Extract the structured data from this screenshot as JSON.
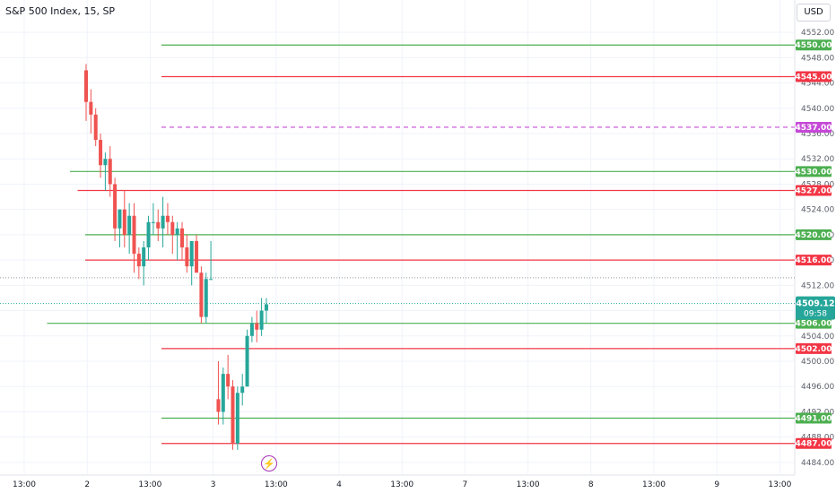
{
  "header": {
    "title": "S&P 500 Index, 15, SP",
    "currency": "USD"
  },
  "colors": {
    "up": "#26a69a",
    "down": "#ef5350",
    "support": "#4caf50",
    "resistance": "#f23645",
    "pivot": "#c548d6",
    "grid": "#f0f3fa",
    "axis_text": "#5d606b",
    "price_label": "#26a69a"
  },
  "chart_data": {
    "type": "candlestick",
    "title": "S&P 500 Index, 15, SP",
    "ylim": [
      4482,
      4554
    ],
    "y_ticks": [
      4552,
      4548,
      4544,
      4540,
      4536,
      4532,
      4528,
      4524,
      4520,
      4516,
      4512,
      4508,
      4504,
      4500,
      4496,
      4492,
      4488,
      4484
    ],
    "y_tick_labels": [
      "4552.00",
      "4548.00",
      "4544.00",
      "4540.00",
      "4536.00",
      "4532.00",
      "4528.00",
      "4524.00",
      "4520.00",
      "4516.00",
      "4512.00",
      "4508.00",
      "4504.00",
      "4500.00",
      "4496.00",
      "4492.00",
      "4488.00",
      "4484.00"
    ],
    "x_tick_labels": [
      "13:00",
      "2",
      "13:00",
      "3",
      "13:00",
      "4",
      "13:00",
      "7",
      "13:00",
      "8",
      "13:00",
      "9",
      "13:00"
    ],
    "grid": true,
    "current_price": "4509.12",
    "countdown": "09:58",
    "last_close_level": 4513.2,
    "levels": [
      {
        "value": 4550,
        "label": "4550.00",
        "kind": "support",
        "style": "solid",
        "start_index": 0.6
      },
      {
        "value": 4545,
        "label": "4545.00",
        "kind": "resistance",
        "style": "solid",
        "start_index": 0.6
      },
      {
        "value": 4537,
        "label": "4537.00",
        "kind": "pivot",
        "style": "dashed",
        "start_index": 0.6
      },
      {
        "value": 4530,
        "label": "4530.00",
        "kind": "support",
        "style": "solid",
        "start_index": 0.0
      },
      {
        "value": 4527,
        "label": "4527.00",
        "kind": "resistance",
        "style": "solid",
        "start_index": 0.05
      },
      {
        "value": 4520,
        "label": "4520.00",
        "kind": "support",
        "style": "solid",
        "start_index": 0.1
      },
      {
        "value": 4516,
        "label": "4516.00",
        "kind": "resistance",
        "style": "solid",
        "start_index": 0.1
      },
      {
        "value": 4506,
        "label": "4506.00",
        "kind": "support",
        "style": "solid",
        "start_index": -0.15
      },
      {
        "value": 4502,
        "label": "4502.00",
        "kind": "resistance",
        "style": "solid",
        "start_index": 0.6
      },
      {
        "value": 4491,
        "label": "4491.00",
        "kind": "support",
        "style": "solid",
        "start_index": 0.6
      },
      {
        "value": 4487,
        "label": "4487.00",
        "kind": "resistance",
        "style": "solid",
        "start_index": 0.6
      }
    ],
    "candles": [
      {
        "o": 4546,
        "h": 4547,
        "l": 4538,
        "c": 4541
      },
      {
        "o": 4541,
        "h": 4543,
        "l": 4536,
        "c": 4539
      },
      {
        "o": 4539,
        "h": 4540,
        "l": 4534,
        "c": 4535
      },
      {
        "o": 4535,
        "h": 4536,
        "l": 4529,
        "c": 4531
      },
      {
        "o": 4531,
        "h": 4533,
        "l": 4527,
        "c": 4532
      },
      {
        "o": 4532,
        "h": 4534,
        "l": 4526,
        "c": 4528
      },
      {
        "o": 4528,
        "h": 4529,
        "l": 4519,
        "c": 4521
      },
      {
        "o": 4521,
        "h": 4524,
        "l": 4518,
        "c": 4524
      },
      {
        "o": 4524,
        "h": 4527,
        "l": 4518,
        "c": 4520
      },
      {
        "o": 4520,
        "h": 4525,
        "l": 4517,
        "c": 4523
      },
      {
        "o": 4523,
        "h": 4525,
        "l": 4514,
        "c": 4517
      },
      {
        "o": 4517,
        "h": 4518,
        "l": 4513,
        "c": 4515
      },
      {
        "o": 4515,
        "h": 4519,
        "l": 4512,
        "c": 4518
      },
      {
        "o": 4518,
        "h": 4523,
        "l": 4516,
        "c": 4522
      },
      {
        "o": 4522,
        "h": 4525,
        "l": 4520,
        "c": 4522
      },
      {
        "o": 4522,
        "h": 4524,
        "l": 4519,
        "c": 4521
      },
      {
        "o": 4521,
        "h": 4526,
        "l": 4518,
        "c": 4523
      },
      {
        "o": 4523,
        "h": 4525,
        "l": 4520,
        "c": 4522
      },
      {
        "o": 4522,
        "h": 4523,
        "l": 4517,
        "c": 4520
      },
      {
        "o": 4520,
        "h": 4522,
        "l": 4516,
        "c": 4521
      },
      {
        "o": 4521,
        "h": 4522,
        "l": 4516,
        "c": 4518
      },
      {
        "o": 4518,
        "h": 4520,
        "l": 4514,
        "c": 4515
      },
      {
        "o": 4515,
        "h": 4519,
        "l": 4512,
        "c": 4519
      },
      {
        "o": 4519,
        "h": 4520,
        "l": 4514,
        "c": 4514
      },
      {
        "o": 4514,
        "h": 4515,
        "l": 4506,
        "c": 4507
      },
      {
        "o": 4507,
        "h": 4514,
        "l": 4506,
        "c": 4513
      },
      {
        "o": 4513,
        "h": 4519,
        "l": 4513,
        "c": 4513
      },
      {
        "o": 4494,
        "h": 4500,
        "l": 4490,
        "c": 4492
      },
      {
        "o": 4492,
        "h": 4499,
        "l": 4490,
        "c": 4498
      },
      {
        "o": 4498,
        "h": 4501,
        "l": 4494,
        "c": 4496
      },
      {
        "o": 4496,
        "h": 4497,
        "l": 4486,
        "c": 4487
      },
      {
        "o": 4487,
        "h": 4496,
        "l": 4486,
        "c": 4495
      },
      {
        "o": 4495,
        "h": 4498,
        "l": 4493,
        "c": 4496
      },
      {
        "o": 4496,
        "h": 4505,
        "l": 4496,
        "c": 4504
      },
      {
        "o": 4504,
        "h": 4507,
        "l": 4503,
        "c": 4506
      },
      {
        "o": 4506,
        "h": 4508,
        "l": 4503,
        "c": 4505
      },
      {
        "o": 4505,
        "h": 4510,
        "l": 4504,
        "c": 4508
      },
      {
        "o": 4508,
        "h": 4510,
        "l": 4506,
        "c": 4509
      }
    ]
  }
}
